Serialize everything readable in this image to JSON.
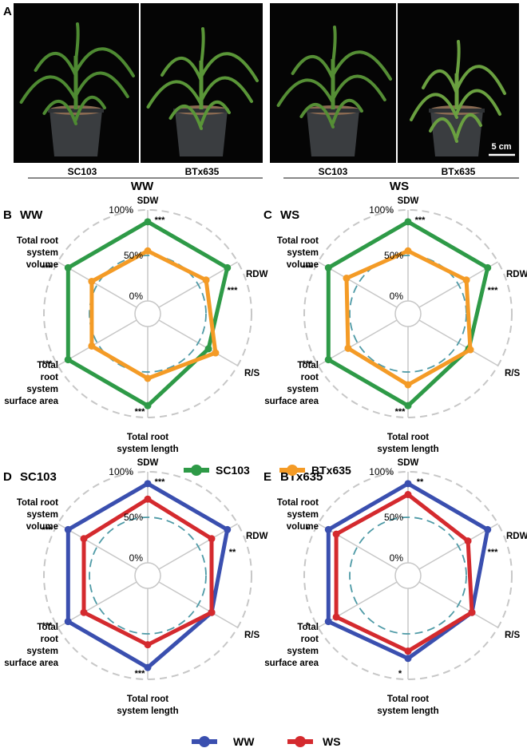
{
  "figure": {
    "panel_a": {
      "label": "A",
      "photos": [
        {
          "genotype": "SC103",
          "condition": "WW",
          "leaf_color": "#4e8a32"
        },
        {
          "genotype": "BTx635",
          "condition": "WW",
          "leaf_color": "#5a9638"
        },
        {
          "genotype": "SC103",
          "condition": "WS",
          "leaf_color": "#558e35"
        },
        {
          "genotype": "BTx635",
          "condition": "WS",
          "leaf_color": "#6aa040"
        }
      ],
      "groups": [
        "WW",
        "WS"
      ],
      "scale_bar": "5 cm"
    },
    "legend_genotype": [
      {
        "name": "SC103",
        "color": "#2e9a47"
      },
      {
        "name": "BTx635",
        "color": "#f49b26"
      }
    ],
    "legend_condition": [
      {
        "name": "WW",
        "color": "#3a4faf"
      },
      {
        "name": "WS",
        "color": "#d42a2e"
      }
    ],
    "reference_color": "#4e9aa6"
  },
  "chart_data": [
    {
      "type": "radar",
      "panel": "B",
      "title": "WW",
      "axes": [
        "SDW",
        "RDW",
        "R/S",
        "Total root system length",
        "Total root system surface area",
        "Total root system volume"
      ],
      "radial_ticks": [
        "0%",
        "50%",
        "100%"
      ],
      "rlim": [
        0,
        100
      ],
      "reference_level": 50,
      "series": [
        {
          "name": "SC103",
          "color": "#2e9a47",
          "values": [
            87,
            87,
            63,
            87,
            87,
            87
          ]
        },
        {
          "name": "BTx635",
          "color": "#f49b26",
          "values": [
            55,
            60,
            72,
            57,
            57,
            57
          ]
        }
      ],
      "significance": [
        "***",
        "***",
        "",
        "***",
        "***",
        "***"
      ]
    },
    {
      "type": "radar",
      "panel": "C",
      "title": "WS",
      "axes": [
        "SDW",
        "RDW",
        "R/S",
        "Total root system length",
        "Total root system surface area",
        "Total root system volume"
      ],
      "radial_ticks": [
        "0%",
        "50%",
        "100%"
      ],
      "rlim": [
        0,
        100
      ],
      "reference_level": 50,
      "series": [
        {
          "name": "SC103",
          "color": "#2e9a47",
          "values": [
            87,
            87,
            63,
            87,
            87,
            87
          ]
        },
        {
          "name": "BTx635",
          "color": "#f49b26",
          "values": [
            55,
            60,
            65,
            64,
            62,
            64
          ]
        }
      ],
      "significance": [
        "***",
        "***",
        "",
        "***",
        "***",
        "***"
      ]
    },
    {
      "type": "radar",
      "panel": "D",
      "title": "SC103",
      "axes": [
        "SDW",
        "RDW",
        "R/S",
        "Total root system length",
        "Total root system surface area",
        "Total root system volume"
      ],
      "radial_ticks": [
        "0%",
        "50%",
        "100%"
      ],
      "rlim": [
        0,
        100
      ],
      "reference_level": 50,
      "series": [
        {
          "name": "WW",
          "color": "#3a4faf",
          "values": [
            87,
            87,
            67,
            87,
            87,
            87
          ]
        },
        {
          "name": "WS",
          "color": "#d42a2e",
          "values": [
            70,
            67,
            67,
            62,
            67,
            67
          ]
        }
      ],
      "significance": [
        "***",
        "**",
        "",
        "***",
        "***",
        "***"
      ]
    },
    {
      "type": "radar",
      "panel": "E",
      "title": "BTx635",
      "axes": [
        "SDW",
        "RDW",
        "R/S",
        "Total root system length",
        "Total root system surface area",
        "Total root system volume"
      ],
      "radial_ticks": [
        "0%",
        "50%",
        "100%"
      ],
      "rlim": [
        0,
        100
      ],
      "reference_level": 50,
      "series": [
        {
          "name": "WW",
          "color": "#3a4faf",
          "values": [
            87,
            87,
            67,
            77,
            87,
            87
          ]
        },
        {
          "name": "WS",
          "color": "#d42a2e",
          "values": [
            75,
            62,
            67,
            69,
            77,
            77
          ]
        }
      ],
      "significance": [
        "**",
        "***",
        "",
        "*",
        "*",
        "*"
      ]
    }
  ]
}
